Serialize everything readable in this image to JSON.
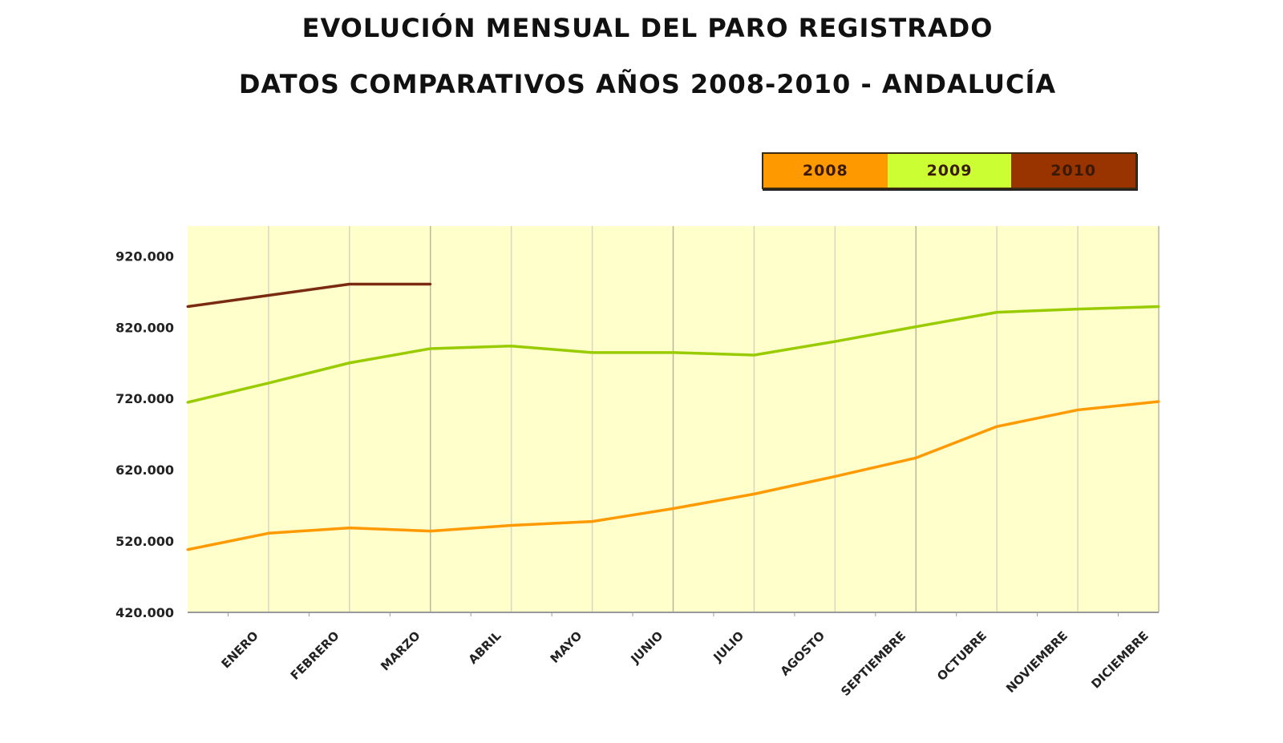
{
  "chart_data": {
    "type": "line",
    "title": "EVOLUCIÓN MENSUAL DEL PARO REGISTRADO",
    "subtitle": "DATOS COMPARATIVOS AÑOS 2008-2010 - ANDALUCÍA",
    "xlabel": "",
    "ylabel": "",
    "categories": [
      "",
      "ENERO",
      "FEBRERO",
      "MARZO",
      "ABRIL",
      "MAYO",
      "JUNIO",
      "JULIO",
      "AGOSTO",
      "SEPTIEMBRE",
      "OCTUBRE",
      "NOVIEMBRE",
      "DICIEMBRE"
    ],
    "ylim": [
      420000,
      962000
    ],
    "yticks": [
      420000,
      520000,
      620000,
      720000,
      820000,
      920000
    ],
    "ytick_labels": [
      "420.000",
      "520.000",
      "620.000",
      "720.000",
      "820.000",
      "920.000"
    ],
    "grid": "vertical",
    "legend_placement": "top-right",
    "plot_background": "#ffffcc",
    "series": [
      {
        "name": "2008",
        "color": "#ff9900",
        "values": [
          508000,
          531000,
          538500,
          534000,
          542000,
          547500,
          565600,
          586000,
          610700,
          636700,
          680700,
          704000,
          715700
        ]
      },
      {
        "name": "2009",
        "color": "#99cc00",
        "legend_color": "#ccff33",
        "values": [
          714600,
          741700,
          770000,
          790000,
          793600,
          784500,
          784500,
          781000,
          800000,
          820700,
          841000,
          845500,
          849000
        ]
      },
      {
        "name": "2010",
        "color": "#7a2a10",
        "legend_color": "#993300",
        "values": [
          849000,
          864700,
          880500,
          880500,
          null,
          null,
          null,
          null,
          null,
          null,
          null,
          null,
          null
        ]
      }
    ]
  }
}
